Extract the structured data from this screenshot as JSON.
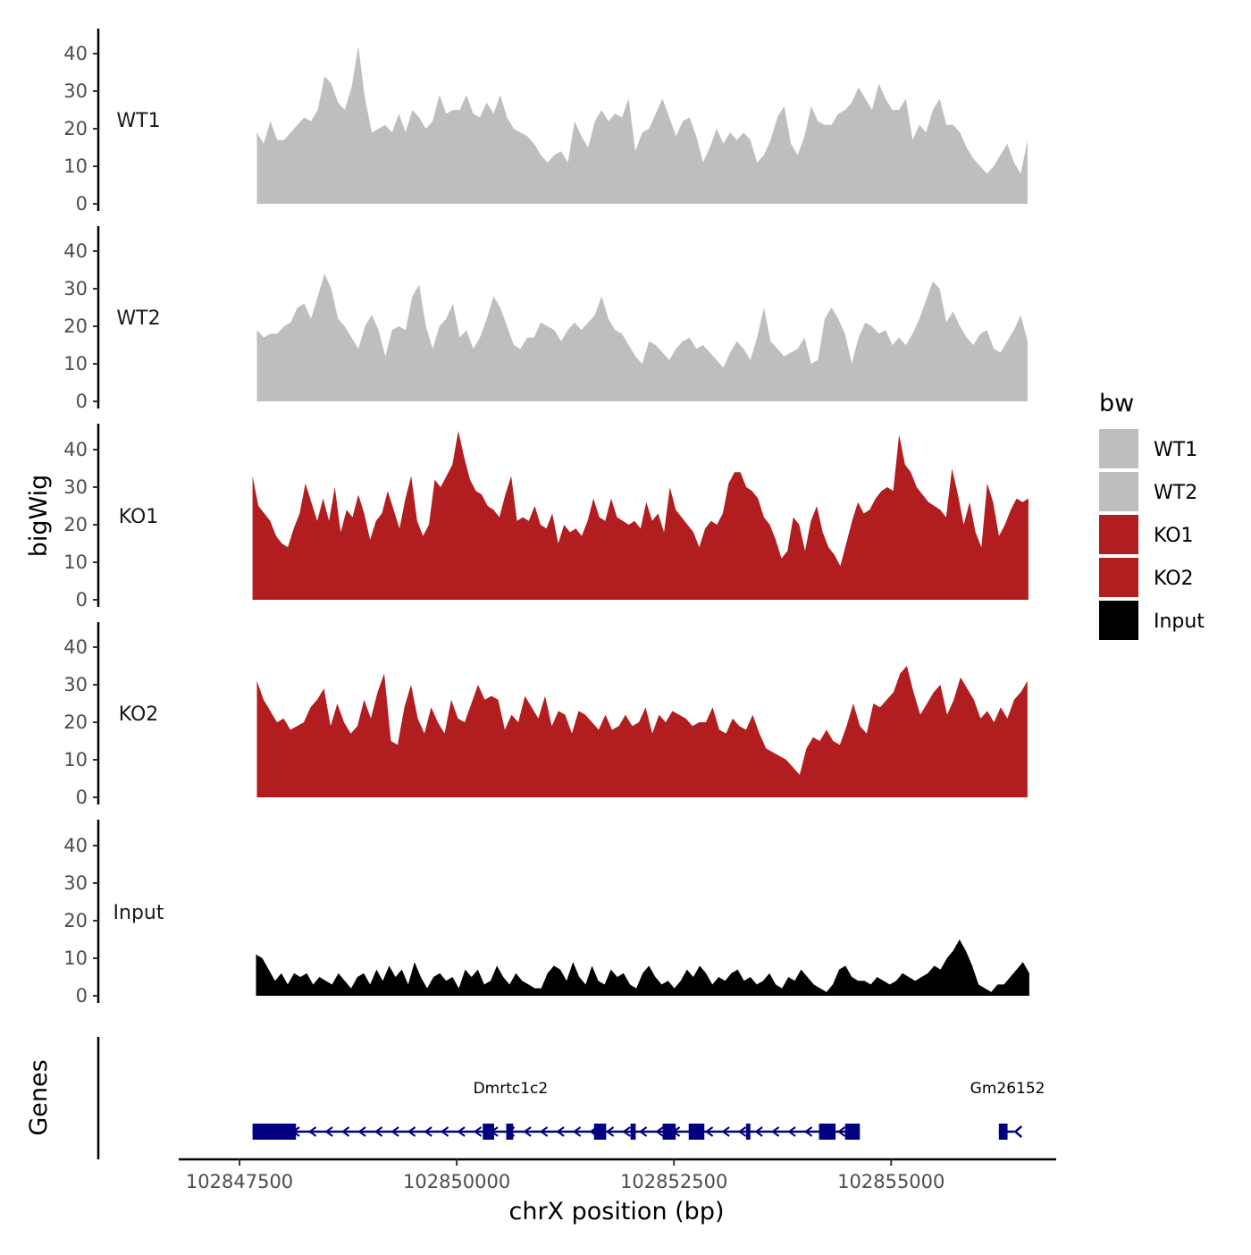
{
  "chart_data": {
    "type": "area",
    "title": "",
    "ylabel": "bigWig",
    "genes_label": "Genes",
    "xlabel": "chrX position (bp)",
    "xlim": [
      102846800,
      102856900
    ],
    "ylim": [
      0,
      45
    ],
    "y_ticks": [
      0,
      10,
      20,
      30,
      40
    ],
    "x_ticks": [
      {
        "value": 102847500,
        "label": "102847500"
      },
      {
        "value": 102850000,
        "label": "102850000"
      },
      {
        "value": 102852500,
        "label": "102852500"
      },
      {
        "value": 102855000,
        "label": "102855000"
      }
    ],
    "legend": {
      "title": "bw",
      "entries": [
        {
          "label": "WT1",
          "color": "#bebebe"
        },
        {
          "label": "WT2",
          "color": "#bebebe"
        },
        {
          "label": "KO1",
          "color": "#b21e1f"
        },
        {
          "label": "KO2",
          "color": "#b21e1f"
        },
        {
          "label": "Input",
          "color": "#000000"
        }
      ]
    },
    "series": [
      {
        "name": "WT1",
        "color": "#bebebe",
        "start": 102847700,
        "end": 102856570,
        "values": [
          19,
          16,
          22,
          17,
          17,
          19,
          21,
          23,
          22,
          25,
          34,
          32,
          27,
          25,
          31,
          42,
          28,
          19,
          20,
          21,
          19,
          24,
          19,
          25,
          23,
          20,
          22,
          29,
          24,
          25,
          25,
          29,
          24,
          23,
          27,
          24,
          29,
          23,
          20,
          19,
          18,
          16,
          13,
          11,
          13,
          14,
          11,
          22,
          18,
          15,
          22,
          25,
          22,
          24,
          23,
          28,
          14,
          19,
          20,
          24,
          28,
          23,
          18,
          22,
          23,
          18,
          11,
          15,
          20,
          16,
          19,
          17,
          19,
          17,
          11,
          13,
          17,
          23,
          26,
          16,
          13,
          18,
          26,
          22,
          21,
          21,
          24,
          25,
          27,
          31,
          28,
          25,
          32,
          28,
          25,
          25,
          28,
          17,
          21,
          19,
          25,
          28,
          21,
          21,
          19,
          15,
          12,
          10,
          8,
          10,
          13,
          16,
          11,
          8,
          17
        ]
      },
      {
        "name": "WT2",
        "color": "#bebebe",
        "start": 102847700,
        "end": 102856570,
        "values": [
          19,
          17,
          18,
          18,
          20,
          21,
          25,
          26,
          22,
          28,
          34,
          30,
          22,
          20,
          17,
          14,
          20,
          23,
          19,
          12,
          19,
          20,
          19,
          28,
          31,
          20,
          14,
          20,
          22,
          26,
          17,
          19,
          14,
          17,
          22,
          28,
          25,
          20,
          15,
          14,
          17,
          17,
          21,
          20,
          19,
          16,
          19,
          21,
          19,
          21,
          23,
          28,
          22,
          19,
          18,
          15,
          12,
          10,
          16,
          15,
          13,
          11,
          14,
          16,
          17,
          14,
          15,
          13,
          11,
          9,
          13,
          16,
          14,
          11,
          17,
          25,
          16,
          14,
          12,
          13,
          14,
          17,
          10,
          11,
          22,
          25,
          22,
          18,
          10,
          17,
          21,
          20,
          18,
          19,
          15,
          17,
          15,
          18,
          22,
          27,
          32,
          30,
          21,
          24,
          20,
          17,
          15,
          18,
          19,
          14,
          13,
          16,
          19,
          23,
          16
        ]
      },
      {
        "name": "KO1",
        "color": "#b21e1f",
        "start": 102847650,
        "end": 102856580,
        "values": [
          33,
          25,
          23,
          21,
          17,
          15,
          14,
          19,
          23,
          31,
          26,
          21,
          27,
          21,
          30,
          18,
          24,
          22,
          28,
          23,
          16,
          21,
          23,
          29,
          24,
          19,
          27,
          33,
          21,
          17,
          20,
          32,
          30,
          33,
          36,
          45,
          38,
          32,
          29,
          28,
          25,
          24,
          22,
          28,
          33,
          21,
          22,
          21,
          25,
          20,
          19,
          23,
          15,
          20,
          18,
          19,
          17,
          21,
          27,
          22,
          21,
          27,
          22,
          21,
          20,
          21,
          19,
          26,
          21,
          23,
          18,
          30,
          24,
          22,
          20,
          18,
          14,
          19,
          21,
          20,
          23,
          31,
          34,
          34,
          30,
          29,
          27,
          22,
          20,
          16,
          11,
          13,
          22,
          20,
          13,
          21,
          25,
          18,
          14,
          12,
          9,
          15,
          21,
          26,
          23,
          24,
          27,
          29,
          30,
          29,
          44,
          36,
          34,
          30,
          28,
          26,
          25,
          24,
          22,
          35,
          28,
          20,
          26,
          18,
          14,
          31,
          26,
          17,
          20,
          24,
          27,
          26,
          27
        ]
      },
      {
        "name": "KO2",
        "color": "#b21e1f",
        "start": 102847700,
        "end": 102856570,
        "values": [
          31,
          26,
          23,
          20,
          21,
          18,
          19,
          20,
          24,
          26,
          29,
          19,
          25,
          20,
          17,
          19,
          26,
          21,
          28,
          33,
          15,
          14,
          24,
          30,
          21,
          17,
          24,
          20,
          17,
          26,
          21,
          20,
          25,
          30,
          26,
          27,
          26,
          18,
          22,
          20,
          27,
          24,
          21,
          27,
          19,
          23,
          22,
          17,
          23,
          22,
          20,
          18,
          22,
          18,
          19,
          22,
          19,
          20,
          24,
          17,
          22,
          20,
          23,
          22,
          21,
          19,
          20,
          20,
          24,
          18,
          17,
          21,
          19,
          18,
          22,
          17,
          13,
          12,
          11,
          10,
          8,
          6,
          13,
          16,
          15,
          18,
          15,
          14,
          19,
          25,
          19,
          17,
          25,
          24,
          26,
          28,
          33,
          35,
          28,
          22,
          25,
          28,
          30,
          22,
          26,
          32,
          29,
          26,
          21,
          23,
          20,
          24,
          21,
          26,
          28,
          31
        ]
      },
      {
        "name": "Input",
        "color": "#000000",
        "start": 102847690,
        "end": 102856590,
        "values": [
          11,
          10,
          7,
          4,
          6,
          3,
          6,
          5,
          6,
          3,
          5,
          4,
          3,
          6,
          4,
          2,
          5,
          6,
          3,
          7,
          4,
          8,
          5,
          7,
          3,
          9,
          5,
          2,
          5,
          6,
          4,
          5,
          2,
          7,
          5,
          7,
          3,
          4,
          8,
          5,
          3,
          6,
          4,
          3,
          2,
          2,
          6,
          8,
          7,
          4,
          9,
          5,
          3,
          8,
          4,
          3,
          7,
          5,
          6,
          3,
          2,
          6,
          8,
          5,
          3,
          4,
          2,
          4,
          7,
          5,
          8,
          6,
          3,
          5,
          4,
          6,
          7,
          4,
          5,
          3,
          4,
          6,
          3,
          2,
          5,
          4,
          7,
          5,
          3,
          2,
          1,
          3,
          7,
          8,
          5,
          4,
          4,
          3,
          5,
          4,
          3,
          4,
          6,
          5,
          4,
          5,
          6,
          8,
          7,
          10,
          12,
          15,
          12,
          8,
          3,
          2,
          1,
          3,
          3,
          5,
          7,
          9,
          6
        ]
      }
    ],
    "genes": [
      {
        "name": "Dmrtc1c2",
        "start": 102847650,
        "end": 102854620,
        "strand": "-",
        "exons": [
          [
            102847650,
            102848150
          ],
          [
            102850300,
            102850430
          ],
          [
            102850570,
            102850650
          ],
          [
            102851580,
            102851720
          ],
          [
            102852000,
            102852060
          ],
          [
            102852370,
            102852520
          ],
          [
            102852670,
            102852850
          ],
          [
            102853330,
            102853380
          ],
          [
            102854170,
            102854360
          ],
          [
            102854470,
            102854640
          ]
        ]
      },
      {
        "name": "Gm26152",
        "start": 102856240,
        "end": 102856420,
        "strand": "-",
        "exons": [
          [
            102856240,
            102856340
          ]
        ]
      }
    ]
  }
}
